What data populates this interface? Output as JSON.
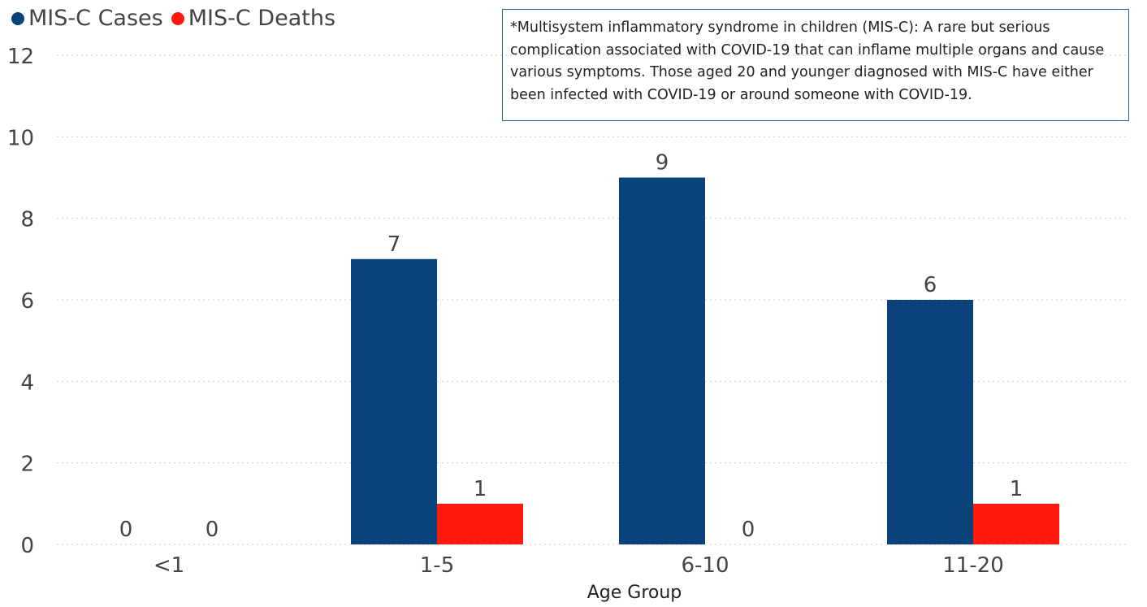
{
  "chart_data": {
    "type": "bar",
    "categories": [
      "<1",
      "1-5",
      "6-10",
      "11-20"
    ],
    "series": [
      {
        "name": "MIS-C Cases",
        "color": "#0a427a",
        "values": [
          0,
          7,
          9,
          6
        ]
      },
      {
        "name": "MIS-C Deaths",
        "color": "#ff1a0f",
        "values": [
          0,
          1,
          0,
          1
        ]
      }
    ],
    "xlabel": "Age Group",
    "ylabel": "",
    "ylim": [
      0,
      12
    ],
    "yticks": [
      0,
      2,
      4,
      6,
      8,
      10,
      12
    ],
    "grid": true,
    "legend_position": "top-left",
    "annotation": "*Multisystem inflammatory syndrome in children (MIS-C): A rare but serious complication associated with COVID-19 that can inflame multiple organs and cause various symptoms. Those aged 20 and younger diagnosed with MIS-C have either been infected with COVID-19 or around someone with COVID-19."
  }
}
